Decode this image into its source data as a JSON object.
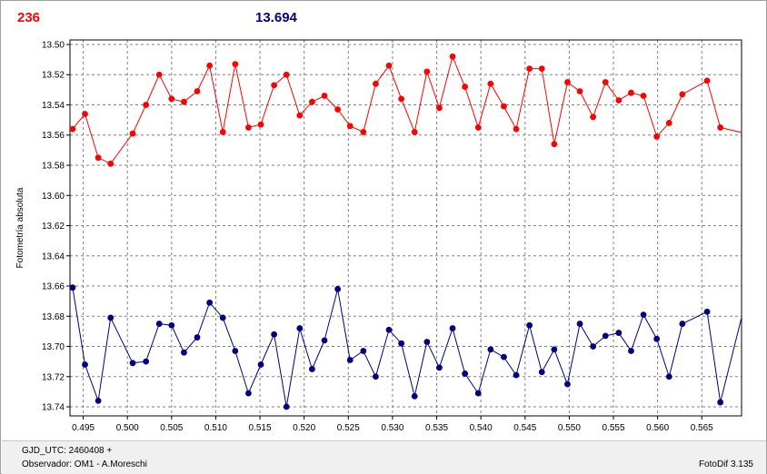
{
  "header": {
    "left_value": "236",
    "right_value": "13.694"
  },
  "footer": {
    "gjd_label": "GJD_UTC: 2460408 +",
    "observer_label": "Observador: OM1 - A.Moreschi",
    "version_label": "FotoDif 3.135"
  },
  "colors": {
    "series_1": "#ff0000",
    "series_2": "#000080",
    "grid": "#808080",
    "axis": "#000000"
  },
  "chart_data": {
    "type": "line",
    "title": "",
    "xlabel": "",
    "ylabel": "Fotometría absoluta",
    "xlim": [
      0.4935,
      0.5695
    ],
    "ylim": [
      13.746,
      13.497
    ],
    "y_inverted": true,
    "grid": true,
    "legend": "none",
    "x_ticks": [
      0.495,
      0.5,
      0.505,
      0.51,
      0.515,
      0.52,
      0.525,
      0.53,
      0.535,
      0.54,
      0.545,
      0.55,
      0.555,
      0.56,
      0.565
    ],
    "x_tick_labels": [
      "0.495",
      "0.500",
      "0.505",
      "0.510",
      "0.515",
      "0.520",
      "0.525",
      "0.530",
      "0.535",
      "0.540",
      "0.545",
      "0.550",
      "0.555",
      "0.560",
      "0.565"
    ],
    "y_ticks": [
      13.5,
      13.52,
      13.54,
      13.56,
      13.58,
      13.6,
      13.62,
      13.64,
      13.66,
      13.68,
      13.7,
      13.72,
      13.74
    ],
    "y_tick_labels": [
      "13.50",
      "13.52",
      "13.54",
      "13.56",
      "13.58",
      "13.60",
      "13.62",
      "13.64",
      "13.66",
      "13.68",
      "13.70",
      "13.72",
      "13.74"
    ],
    "series": [
      {
        "color": "#ff0000",
        "points": [
          [
            0.4938,
            13.556
          ],
          [
            0.4952,
            13.546
          ],
          [
            0.4967,
            13.575
          ],
          [
            0.4981,
            13.579
          ],
          [
            0.5006,
            13.559
          ],
          [
            0.5021,
            13.54
          ],
          [
            0.5036,
            13.52
          ],
          [
            0.505,
            13.536
          ],
          [
            0.5064,
            13.538
          ],
          [
            0.5079,
            13.531
          ],
          [
            0.5093,
            13.514
          ],
          [
            0.5108,
            13.558
          ],
          [
            0.5122,
            13.513
          ],
          [
            0.5137,
            13.555
          ],
          [
            0.5151,
            13.553
          ],
          [
            0.5166,
            13.527
          ],
          [
            0.518,
            13.52
          ],
          [
            0.5195,
            13.547
          ],
          [
            0.5209,
            13.538
          ],
          [
            0.5223,
            13.534
          ],
          [
            0.5238,
            13.543
          ],
          [
            0.5252,
            13.554
          ],
          [
            0.5267,
            13.558
          ],
          [
            0.5281,
            13.526
          ],
          [
            0.5296,
            13.514
          ],
          [
            0.531,
            13.536
          ],
          [
            0.5325,
            13.558
          ],
          [
            0.5339,
            13.518
          ],
          [
            0.5353,
            13.542
          ],
          [
            0.5368,
            13.508
          ],
          [
            0.5382,
            13.528
          ],
          [
            0.5397,
            13.555
          ],
          [
            0.5411,
            13.526
          ],
          [
            0.5426,
            13.541
          ],
          [
            0.544,
            13.556
          ],
          [
            0.5455,
            13.516
          ],
          [
            0.5469,
            13.516
          ],
          [
            0.5483,
            13.566
          ],
          [
            0.5498,
            13.525
          ],
          [
            0.5512,
            13.531
          ],
          [
            0.5527,
            13.548
          ],
          [
            0.5541,
            13.525
          ],
          [
            0.5556,
            13.537
          ],
          [
            0.557,
            13.532
          ],
          [
            0.5584,
            13.534
          ],
          [
            0.5599,
            13.561
          ],
          [
            0.5613,
            13.552
          ],
          [
            0.5628,
            13.533
          ],
          [
            0.5656,
            13.524
          ],
          [
            0.5671,
            13.555
          ],
          [
            0.57,
            13.559
          ],
          [
            0.5714,
            13.548
          ]
        ]
      },
      {
        "color": "#000080",
        "points": [
          [
            0.4938,
            13.661
          ],
          [
            0.4952,
            13.712
          ],
          [
            0.4967,
            13.736
          ],
          [
            0.4981,
            13.681
          ],
          [
            0.5006,
            13.711
          ],
          [
            0.5021,
            13.71
          ],
          [
            0.5036,
            13.685
          ],
          [
            0.505,
            13.686
          ],
          [
            0.5064,
            13.704
          ],
          [
            0.5079,
            13.694
          ],
          [
            0.5093,
            13.671
          ],
          [
            0.5108,
            13.681
          ],
          [
            0.5122,
            13.703
          ],
          [
            0.5137,
            13.731
          ],
          [
            0.5151,
            13.712
          ],
          [
            0.5166,
            13.692
          ],
          [
            0.518,
            13.74
          ],
          [
            0.5195,
            13.688
          ],
          [
            0.5209,
            13.715
          ],
          [
            0.5223,
            13.696
          ],
          [
            0.5238,
            13.662
          ],
          [
            0.5252,
            13.709
          ],
          [
            0.5267,
            13.703
          ],
          [
            0.5281,
            13.72
          ],
          [
            0.5296,
            13.689
          ],
          [
            0.531,
            13.698
          ],
          [
            0.5325,
            13.733
          ],
          [
            0.5339,
            13.697
          ],
          [
            0.5353,
            13.714
          ],
          [
            0.5368,
            13.688
          ],
          [
            0.5382,
            13.718
          ],
          [
            0.5397,
            13.731
          ],
          [
            0.5411,
            13.702
          ],
          [
            0.5426,
            13.707
          ],
          [
            0.544,
            13.719
          ],
          [
            0.5455,
            13.686
          ],
          [
            0.5469,
            13.717
          ],
          [
            0.5483,
            13.702
          ],
          [
            0.5498,
            13.725
          ],
          [
            0.5512,
            13.685
          ],
          [
            0.5527,
            13.7
          ],
          [
            0.5541,
            13.693
          ],
          [
            0.5556,
            13.691
          ],
          [
            0.557,
            13.703
          ],
          [
            0.5584,
            13.679
          ],
          [
            0.5599,
            13.695
          ],
          [
            0.5613,
            13.72
          ],
          [
            0.5628,
            13.685
          ],
          [
            0.5656,
            13.677
          ],
          [
            0.5671,
            13.737
          ],
          [
            0.57,
            13.669
          ],
          [
            0.5714,
            13.718
          ]
        ]
      }
    ]
  }
}
